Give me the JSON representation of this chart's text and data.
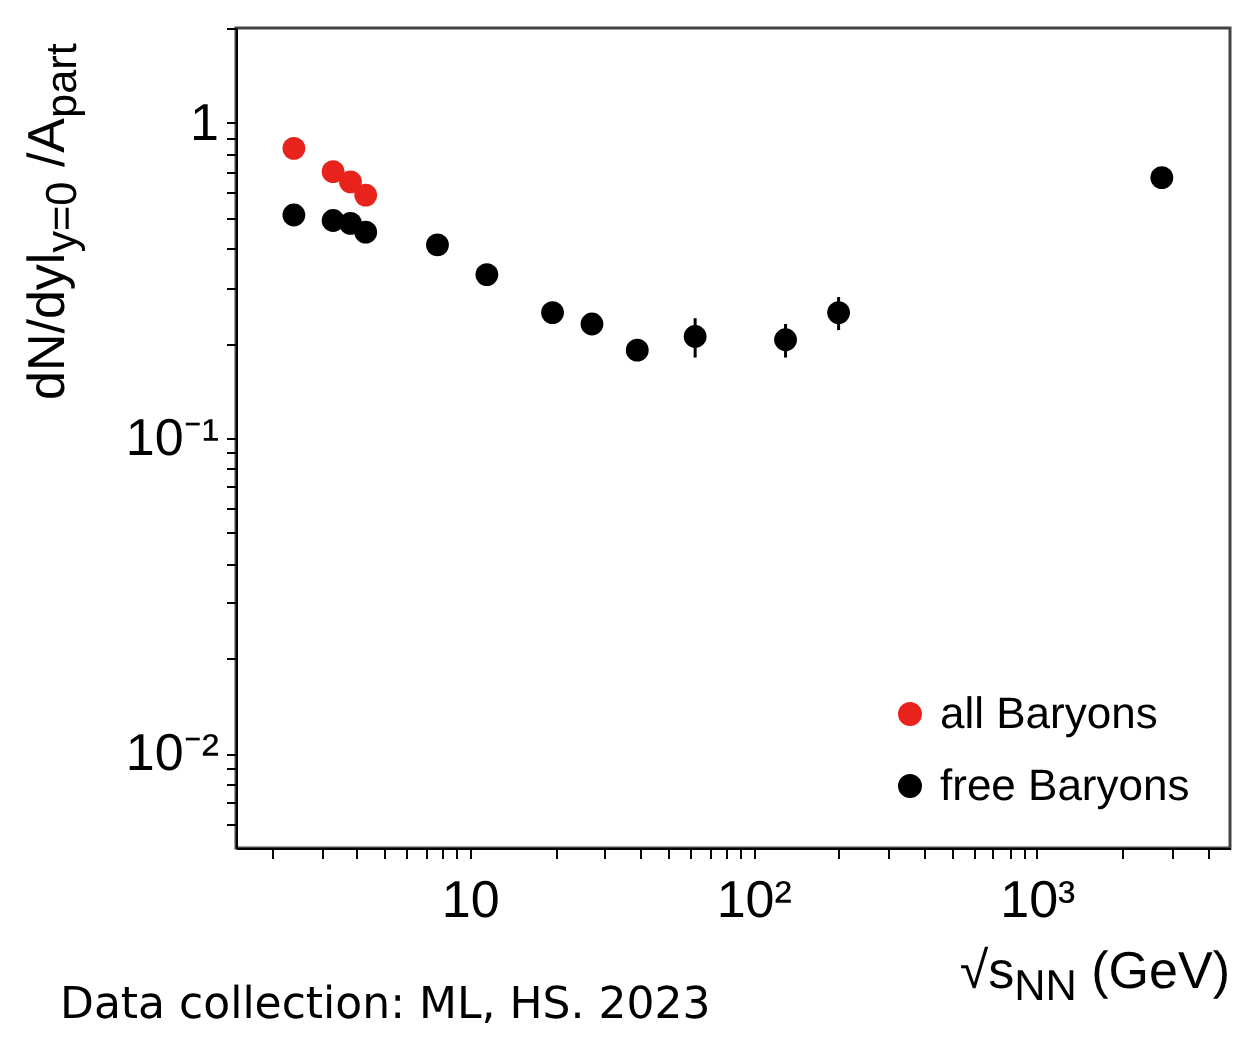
{
  "chart_data": {
    "type": "scatter",
    "log": "xy",
    "marker": "circle",
    "legend": "bottom right",
    "xlabel": "√s$_{NN}$ (GeV)",
    "ylabel": "dN/dyl$_{y=0}$ /A$_{part}$",
    "annotations": [
      "Data collection: ML, HS. 2023"
    ],
    "xlim": [
      1.5,
      4800
    ],
    "ylim": [
      0.005,
      2
    ],
    "xticks": [
      {
        "value": 2,
        "label": null
      },
      {
        "value": 3,
        "label": null
      },
      {
        "value": 4,
        "label": null
      },
      {
        "value": 5,
        "label": null
      },
      {
        "value": 6,
        "label": null
      },
      {
        "value": 7,
        "label": null
      },
      {
        "value": 8,
        "label": null
      },
      {
        "value": 9,
        "label": null
      },
      10,
      {
        "value": 20,
        "label": null
      },
      {
        "value": 30,
        "label": null
      },
      {
        "value": 40,
        "label": null
      },
      {
        "value": 50,
        "label": null
      },
      {
        "value": 60,
        "label": null
      },
      {
        "value": 70,
        "label": null
      },
      {
        "value": 80,
        "label": null
      },
      {
        "value": 90,
        "label": null
      },
      {
        "value": 100,
        "label": "10²"
      },
      {
        "value": 200,
        "label": null
      },
      {
        "value": 300,
        "label": null
      },
      {
        "value": 400,
        "label": null
      },
      {
        "value": 500,
        "label": null
      },
      {
        "value": 600,
        "label": null
      },
      {
        "value": 700,
        "label": null
      },
      {
        "value": 800,
        "label": null
      },
      {
        "value": 900,
        "label": null
      },
      {
        "value": 1000,
        "label": "10³"
      },
      {
        "value": 2000,
        "label": null
      },
      {
        "value": 3000,
        "label": null
      },
      {
        "value": 4000,
        "label": null
      }
    ],
    "yticks": [
      {
        "value": 0.006,
        "label": null
      },
      {
        "value": 0.007,
        "label": null
      },
      {
        "value": 0.008,
        "label": null
      },
      {
        "value": 0.009,
        "label": null
      },
      {
        "value": 0.01,
        "label": "10⁻²"
      },
      {
        "value": 0.02,
        "label": null
      },
      {
        "value": 0.03,
        "label": null
      },
      {
        "value": 0.04,
        "label": null
      },
      {
        "value": 0.05,
        "label": null
      },
      {
        "value": 0.06,
        "label": null
      },
      {
        "value": 0.07,
        "label": null
      },
      {
        "value": 0.08,
        "label": null
      },
      {
        "value": 0.09,
        "label": null
      },
      {
        "value": 0.1,
        "label": "10⁻¹"
      },
      {
        "value": 0.2,
        "label": null
      },
      {
        "value": 0.3,
        "label": null
      },
      {
        "value": 0.4,
        "label": null
      },
      {
        "value": 0.5,
        "label": null
      },
      {
        "value": 0.6,
        "label": null
      },
      {
        "value": 0.7,
        "label": null
      },
      {
        "value": 0.8,
        "label": null
      },
      {
        "value": 0.9,
        "label": null
      },
      1,
      {
        "value": 2,
        "label": null
      }
    ],
    "series": [
      {
        "name": "all Baryons",
        "color": "#e8231c",
        "x": [
          2.4,
          3.3,
          3.8,
          4.3
        ],
        "values": [
          0.83,
          0.7,
          0.65,
          0.59
        ]
      },
      {
        "name": "free Baryons",
        "color": "#000000",
        "x": [
          2.4,
          3.3,
          3.8,
          4.3,
          7.7,
          11.5,
          19.6,
          27,
          39,
          62.4,
          130,
          200,
          2760
        ],
        "values": [
          0.51,
          0.49,
          0.48,
          0.45,
          0.41,
          0.33,
          0.25,
          0.23,
          0.19,
          0.21,
          0.205,
          0.25,
          0.67
        ],
        "errors": [
          null,
          null,
          null,
          null,
          null,
          null,
          null,
          null,
          null,
          [
            0.18,
            0.24
          ],
          [
            0.18,
            0.23
          ],
          [
            0.22,
            0.28
          ],
          null
        ]
      }
    ]
  }
}
